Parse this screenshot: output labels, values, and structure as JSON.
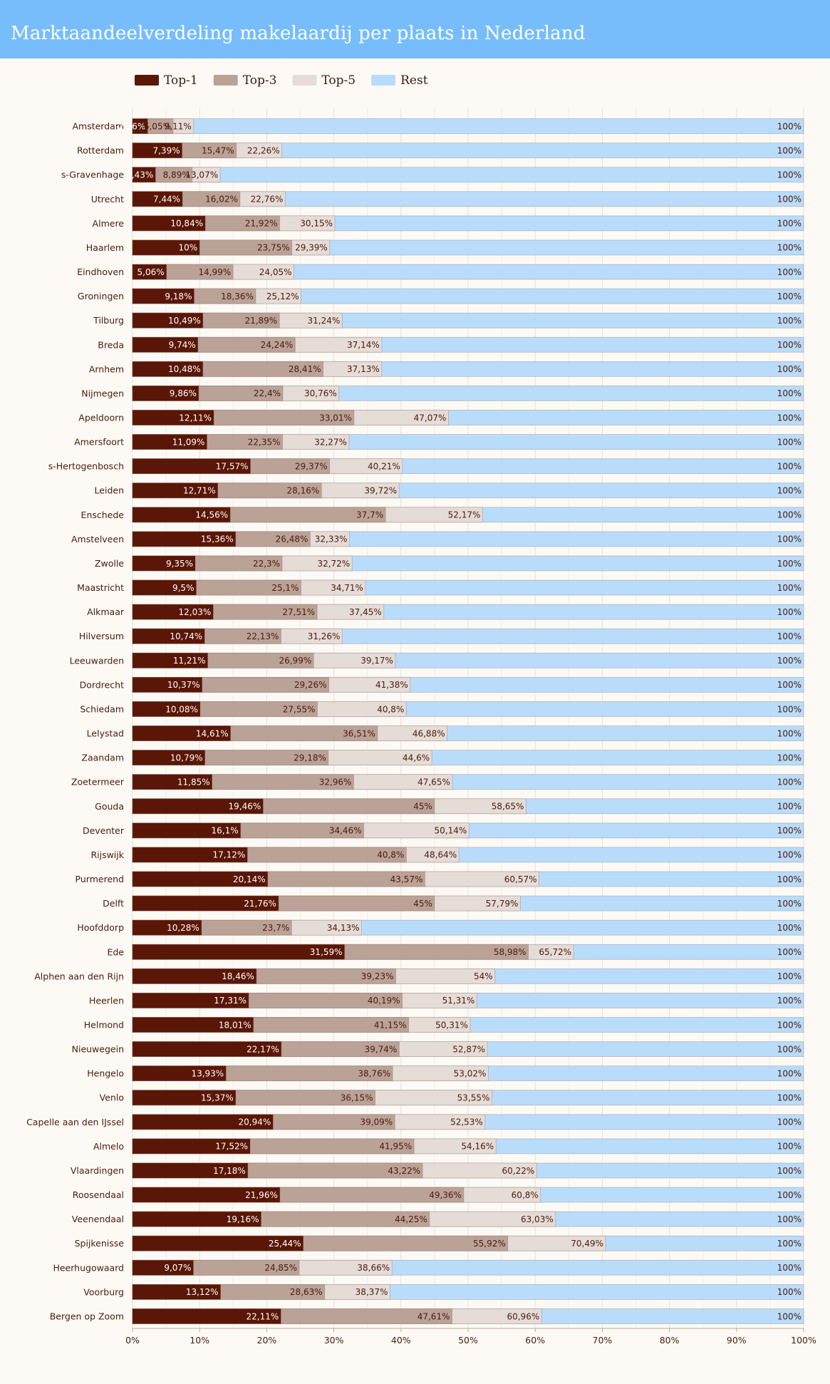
{
  "title": "Marktaandeelverdeling makelaardij per plaats in Nederland",
  "colors": {
    "top1": "#5a1606",
    "top3": "#bba297",
    "top5": "#e5dcd7",
    "rest": "#b9dcfb",
    "header": "#78bdfb",
    "background": "#fdfaf5"
  },
  "chart_data": {
    "type": "bar",
    "orientation": "horizontal",
    "legend": [
      "Top-1",
      "Top-3",
      "Top-5",
      "Rest"
    ],
    "xlim": [
      0,
      100
    ],
    "xticks": [
      "0%",
      "10%",
      "20%",
      "30%",
      "40%",
      "50%",
      "60%",
      "70%",
      "80%",
      "90%",
      "100%"
    ],
    "rows": [
      {
        "city": "Amsterdam",
        "top1": 2.26,
        "top3": 6.05,
        "top5": 9.11,
        "rest": 100
      },
      {
        "city": "Rotterdam",
        "top1": 7.39,
        "top3": 15.47,
        "top5": 22.26,
        "rest": 100
      },
      {
        "city": "s-Gravenhage",
        "top1": 3.43,
        "top3": 8.89,
        "top5": 13.07,
        "rest": 100
      },
      {
        "city": "Utrecht",
        "top1": 7.44,
        "top3": 16.02,
        "top5": 22.76,
        "rest": 100
      },
      {
        "city": "Almere",
        "top1": 10.84,
        "top3": 21.92,
        "top5": 30.15,
        "rest": 100
      },
      {
        "city": "Haarlem",
        "top1": 10,
        "top3": 23.75,
        "top5": 29.39,
        "rest": 100
      },
      {
        "city": "Eindhoven",
        "top1": 5.06,
        "top3": 14.99,
        "top5": 24.05,
        "rest": 100
      },
      {
        "city": "Groningen",
        "top1": 9.18,
        "top3": 18.36,
        "top5": 25.12,
        "rest": 100
      },
      {
        "city": "Tilburg",
        "top1": 10.49,
        "top3": 21.89,
        "top5": 31.24,
        "rest": 100
      },
      {
        "city": "Breda",
        "top1": 9.74,
        "top3": 24.24,
        "top5": 37.14,
        "rest": 100
      },
      {
        "city": "Arnhem",
        "top1": 10.48,
        "top3": 28.41,
        "top5": 37.13,
        "rest": 100
      },
      {
        "city": "Nijmegen",
        "top1": 9.86,
        "top3": 22.4,
        "top5": 30.76,
        "rest": 100
      },
      {
        "city": "Apeldoorn",
        "top1": 12.11,
        "top3": 33.01,
        "top5": 47.07,
        "rest": 100
      },
      {
        "city": "Amersfoort",
        "top1": 11.09,
        "top3": 22.35,
        "top5": 32.27,
        "rest": 100
      },
      {
        "city": "s-Hertogenbosch",
        "top1": 17.57,
        "top3": 29.37,
        "top5": 40.21,
        "rest": 100
      },
      {
        "city": "Leiden",
        "top1": 12.71,
        "top3": 28.16,
        "top5": 39.72,
        "rest": 100
      },
      {
        "city": "Enschede",
        "top1": 14.56,
        "top3": 37.7,
        "top5": 52.17,
        "rest": 100
      },
      {
        "city": "Amstelveen",
        "top1": 15.36,
        "top3": 26.48,
        "top5": 32.33,
        "rest": 100
      },
      {
        "city": "Zwolle",
        "top1": 9.35,
        "top3": 22.3,
        "top5": 32.72,
        "rest": 100
      },
      {
        "city": "Maastricht",
        "top1": 9.5,
        "top3": 25.1,
        "top5": 34.71,
        "rest": 100
      },
      {
        "city": "Alkmaar",
        "top1": 12.03,
        "top3": 27.51,
        "top5": 37.45,
        "rest": 100
      },
      {
        "city": "Hilversum",
        "top1": 10.74,
        "top3": 22.13,
        "top5": 31.26,
        "rest": 100
      },
      {
        "city": "Leeuwarden",
        "top1": 11.21,
        "top3": 26.99,
        "top5": 39.17,
        "rest": 100
      },
      {
        "city": "Dordrecht",
        "top1": 10.37,
        "top3": 29.26,
        "top5": 41.38,
        "rest": 100
      },
      {
        "city": "Schiedam",
        "top1": 10.08,
        "top3": 27.55,
        "top5": 40.8,
        "rest": 100
      },
      {
        "city": "Lelystad",
        "top1": 14.61,
        "top3": 36.51,
        "top5": 46.88,
        "rest": 100
      },
      {
        "city": "Zaandam",
        "top1": 10.79,
        "top3": 29.18,
        "top5": 44.6,
        "rest": 100
      },
      {
        "city": "Zoetermeer",
        "top1": 11.85,
        "top3": 32.96,
        "top5": 47.65,
        "rest": 100
      },
      {
        "city": "Gouda",
        "top1": 19.46,
        "top3": 45,
        "top5": 58.65,
        "rest": 100
      },
      {
        "city": "Deventer",
        "top1": 16.1,
        "top3": 34.46,
        "top5": 50.14,
        "rest": 100
      },
      {
        "city": "Rijswijk",
        "top1": 17.12,
        "top3": 40.8,
        "top5": 48.64,
        "rest": 100
      },
      {
        "city": "Purmerend",
        "top1": 20.14,
        "top3": 43.57,
        "top5": 60.57,
        "rest": 100
      },
      {
        "city": "Delft",
        "top1": 21.76,
        "top3": 45,
        "top5": 57.79,
        "rest": 100
      },
      {
        "city": "Hoofddorp",
        "top1": 10.28,
        "top3": 23.7,
        "top5": 34.13,
        "rest": 100
      },
      {
        "city": "Ede",
        "top1": 31.59,
        "top3": 58.98,
        "top5": 65.72,
        "rest": 100
      },
      {
        "city": "Alphen aan den Rijn",
        "top1": 18.46,
        "top3": 39.23,
        "top5": 54,
        "rest": 100
      },
      {
        "city": "Heerlen",
        "top1": 17.31,
        "top3": 40.19,
        "top5": 51.31,
        "rest": 100
      },
      {
        "city": "Helmond",
        "top1": 18.01,
        "top3": 41.15,
        "top5": 50.31,
        "rest": 100
      },
      {
        "city": "Nieuwegein",
        "top1": 22.17,
        "top3": 39.74,
        "top5": 52.87,
        "rest": 100
      },
      {
        "city": "Hengelo",
        "top1": 13.93,
        "top3": 38.76,
        "top5": 53.02,
        "rest": 100
      },
      {
        "city": "Venlo",
        "top1": 15.37,
        "top3": 36.15,
        "top5": 53.55,
        "rest": 100
      },
      {
        "city": "Capelle aan den IJssel",
        "top1": 20.94,
        "top3": 39.09,
        "top5": 52.53,
        "rest": 100
      },
      {
        "city": "Almelo",
        "top1": 17.52,
        "top3": 41.95,
        "top5": 54.16,
        "rest": 100
      },
      {
        "city": "Vlaardingen",
        "top1": 17.18,
        "top3": 43.22,
        "top5": 60.22,
        "rest": 100
      },
      {
        "city": "Roosendaal",
        "top1": 21.96,
        "top3": 49.36,
        "top5": 60.8,
        "rest": 100
      },
      {
        "city": "Veenendaal",
        "top1": 19.16,
        "top3": 44.25,
        "top5": 63.03,
        "rest": 100
      },
      {
        "city": "Spijkenisse",
        "top1": 25.44,
        "top3": 55.92,
        "top5": 70.49,
        "rest": 100
      },
      {
        "city": "Heerhugowaard",
        "top1": 9.07,
        "top3": 24.85,
        "top5": 38.66,
        "rest": 100
      },
      {
        "city": "Voorburg",
        "top1": 13.12,
        "top3": 28.63,
        "top5": 38.37,
        "rest": 100
      },
      {
        "city": "Bergen op Zoom",
        "top1": 22.11,
        "top3": 47.61,
        "top5": 60.96,
        "rest": 100
      }
    ]
  }
}
